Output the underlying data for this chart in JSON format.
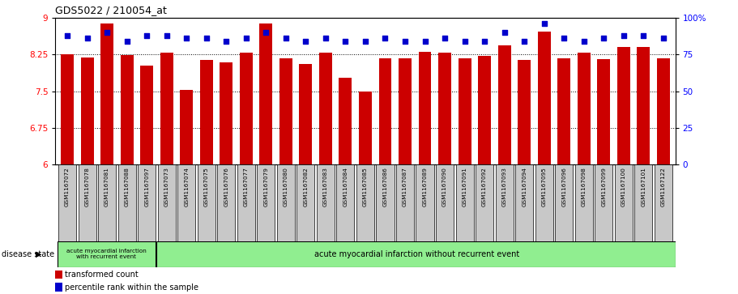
{
  "title": "GDS5022 / 210054_at",
  "samples": [
    "GSM1167072",
    "GSM1167078",
    "GSM1167081",
    "GSM1167088",
    "GSM1167097",
    "GSM1167073",
    "GSM1167074",
    "GSM1167075",
    "GSM1167076",
    "GSM1167077",
    "GSM1167079",
    "GSM1167080",
    "GSM1167082",
    "GSM1167083",
    "GSM1167084",
    "GSM1167085",
    "GSM1167086",
    "GSM1167087",
    "GSM1167089",
    "GSM1167090",
    "GSM1167091",
    "GSM1167092",
    "GSM1167093",
    "GSM1167094",
    "GSM1167095",
    "GSM1167096",
    "GSM1167098",
    "GSM1167099",
    "GSM1167100",
    "GSM1167101",
    "GSM1167122"
  ],
  "bar_values": [
    8.25,
    8.19,
    8.88,
    8.23,
    8.02,
    8.28,
    7.52,
    8.14,
    8.08,
    8.28,
    8.88,
    8.17,
    8.06,
    8.28,
    7.78,
    7.5,
    8.17,
    8.17,
    8.3,
    8.28,
    8.17,
    8.22,
    8.44,
    8.14,
    8.72,
    8.17,
    8.28,
    8.15,
    8.4,
    8.4,
    8.17
  ],
  "percentile_values": [
    88,
    86,
    90,
    84,
    88,
    88,
    86,
    86,
    84,
    86,
    90,
    86,
    84,
    86,
    84,
    84,
    86,
    84,
    84,
    86,
    84,
    84,
    90,
    84,
    96,
    86,
    84,
    86,
    88,
    88,
    86
  ],
  "group1_count": 5,
  "group1_label": "acute myocardial infarction\nwith recurrent event",
  "group2_label": "acute myocardial infarction without recurrent event",
  "disease_state_label": "disease state",
  "ylim_left": [
    6,
    9
  ],
  "ylim_right": [
    0,
    100
  ],
  "yticks_left": [
    6,
    6.75,
    7.5,
    8.25,
    9
  ],
  "yticks_right": [
    0,
    25,
    50,
    75,
    100
  ],
  "bar_color": "#CC0000",
  "dot_color": "#0000CC",
  "group1_bg": "#90EE90",
  "group2_bg": "#90EE90",
  "tick_label_bg": "#C8C8C8",
  "legend_square_red": "#CC0000",
  "legend_square_blue": "#0000CC"
}
